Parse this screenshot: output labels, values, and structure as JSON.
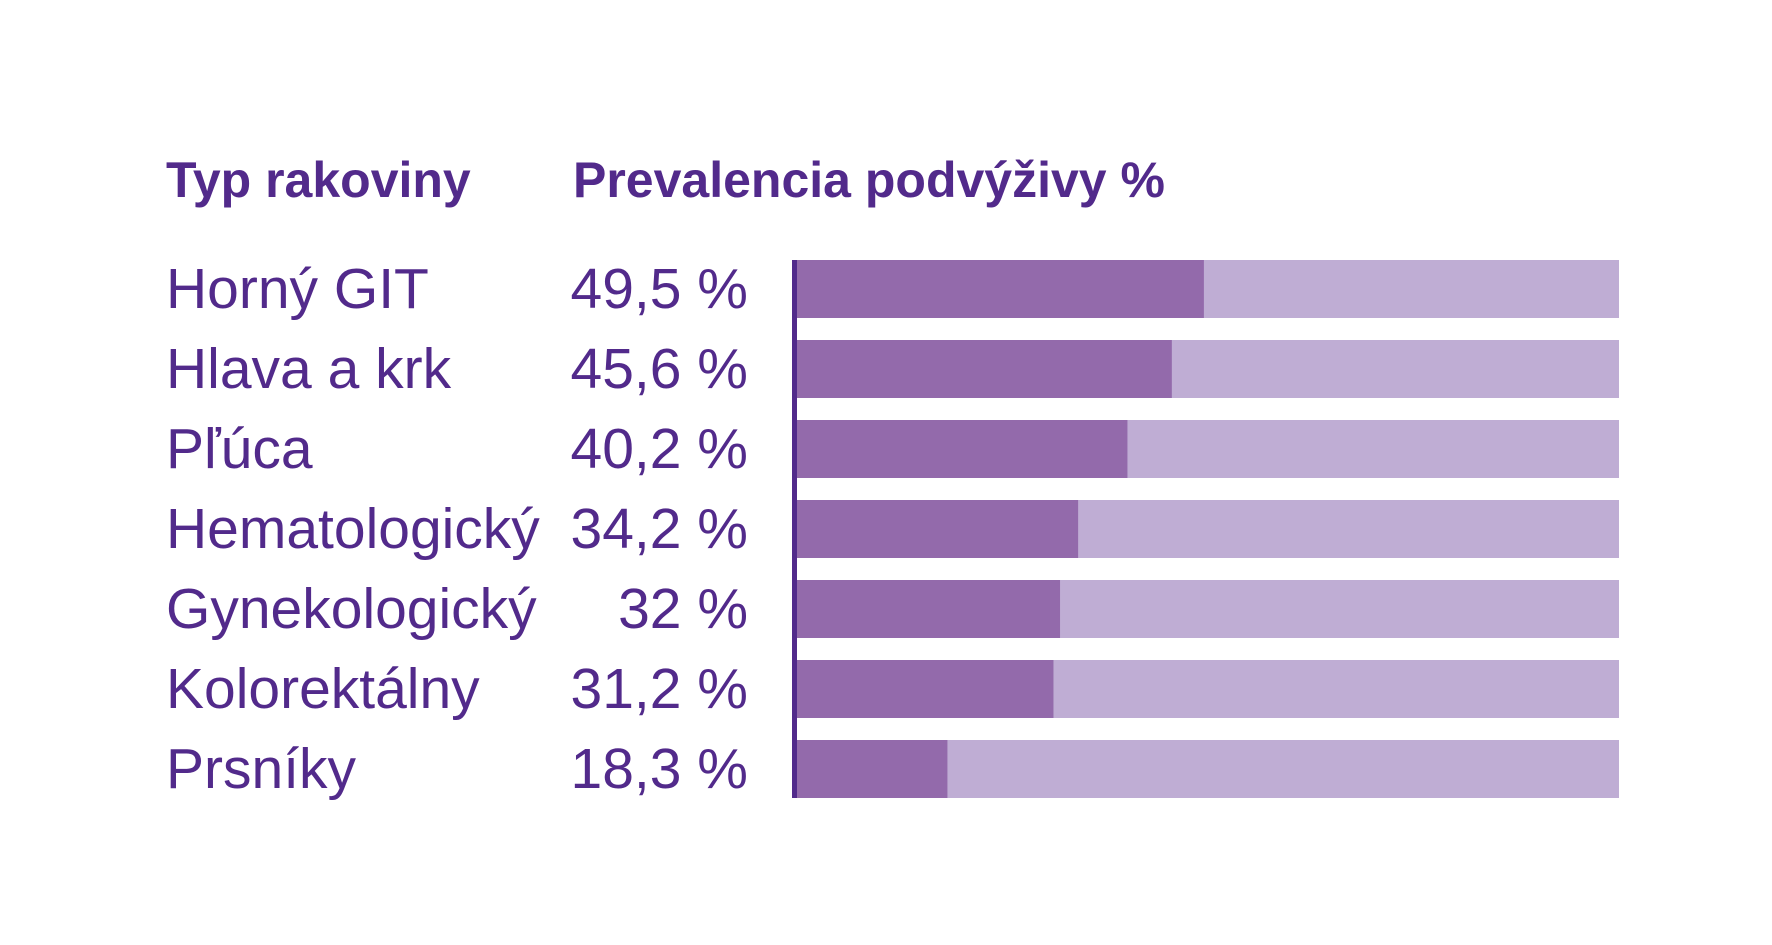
{
  "headers": {
    "type_label": "Typ rakoviny",
    "prevalence_label": "Prevalencia podvýživy %"
  },
  "colors": {
    "text": "#522a8b",
    "bar_fill": "#936aab",
    "bar_track": "#bfadd4",
    "axis": "#522a8b"
  },
  "chart_data": {
    "type": "bar",
    "orientation": "horizontal",
    "categories": [
      "Horný GIT",
      "Hlava a krk",
      "Pľúca",
      "Hematologický",
      "Gynekologický",
      "Kolorektálny",
      "Prsníky"
    ],
    "values": [
      49.5,
      45.6,
      40.2,
      34.2,
      32,
      31.2,
      18.3
    ],
    "value_labels": [
      "49,5 %",
      "45,6 %",
      "40,2 %",
      "34,2 %",
      "32 %",
      "31,2 %",
      "18,3 %"
    ],
    "xlim": [
      0,
      100
    ],
    "grid": false
  }
}
